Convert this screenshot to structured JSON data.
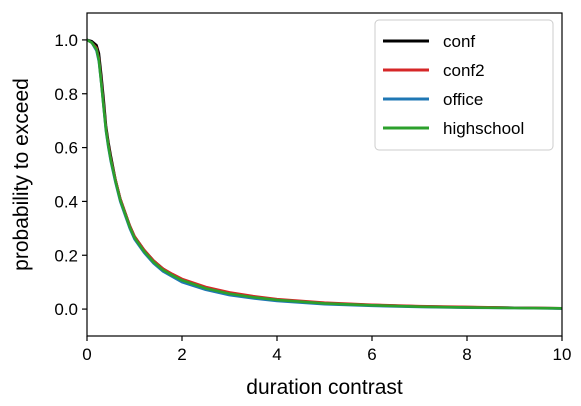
{
  "chart_data": {
    "type": "line",
    "title": "",
    "xlabel": "duration contrast",
    "ylabel": "probability to exceed",
    "xlim": [
      0,
      10
    ],
    "ylim": [
      -0.1,
      1.1
    ],
    "xticks": [
      0,
      2,
      4,
      6,
      8,
      10
    ],
    "yticks": [
      0.0,
      0.2,
      0.4,
      0.6,
      0.8,
      1.0
    ],
    "xtick_labels": [
      "0",
      "2",
      "4",
      "6",
      "8",
      "10"
    ],
    "ytick_labels": [
      "0.0",
      "0.2",
      "0.4",
      "0.6",
      "0.8",
      "1.0"
    ],
    "grid": false,
    "legend_position": "top-right",
    "series": [
      {
        "name": "conf",
        "color": "#000000",
        "x": [
          0,
          0.1,
          0.2,
          0.25,
          0.3,
          0.35,
          0.4,
          0.45,
          0.5,
          0.6,
          0.7,
          0.8,
          0.9,
          1.0,
          1.2,
          1.4,
          1.6,
          1.8,
          2.0,
          2.5,
          3.0,
          3.5,
          4.0,
          5.0,
          6.0,
          7.0,
          8.0,
          9.0,
          10.0
        ],
        "y": [
          1.0,
          0.995,
          0.98,
          0.95,
          0.87,
          0.78,
          0.68,
          0.62,
          0.57,
          0.48,
          0.41,
          0.36,
          0.31,
          0.27,
          0.22,
          0.18,
          0.15,
          0.128,
          0.11,
          0.08,
          0.058,
          0.045,
          0.035,
          0.022,
          0.015,
          0.01,
          0.007,
          0.005,
          0.003
        ]
      },
      {
        "name": "conf2",
        "color": "#d62728",
        "x": [
          0,
          0.1,
          0.2,
          0.25,
          0.3,
          0.35,
          0.4,
          0.45,
          0.5,
          0.6,
          0.7,
          0.8,
          0.9,
          1.0,
          1.2,
          1.4,
          1.6,
          1.8,
          2.0,
          2.5,
          3.0,
          3.5,
          4.0,
          5.0,
          6.0,
          7.0,
          8.0,
          9.0,
          10.0
        ],
        "y": [
          1.0,
          0.99,
          0.97,
          0.93,
          0.85,
          0.76,
          0.67,
          0.61,
          0.56,
          0.48,
          0.41,
          0.36,
          0.31,
          0.27,
          0.22,
          0.18,
          0.15,
          0.13,
          0.112,
          0.082,
          0.062,
          0.048,
          0.037,
          0.024,
          0.016,
          0.011,
          0.008,
          0.005,
          0.003
        ]
      },
      {
        "name": "office",
        "color": "#1f77b4",
        "x": [
          0,
          0.1,
          0.2,
          0.25,
          0.3,
          0.35,
          0.4,
          0.45,
          0.5,
          0.6,
          0.7,
          0.8,
          0.9,
          1.0,
          1.2,
          1.4,
          1.6,
          1.8,
          2.0,
          2.5,
          3.0,
          3.5,
          4.0,
          5.0,
          6.0,
          7.0,
          8.0,
          9.0,
          10.0
        ],
        "y": [
          1.0,
          0.99,
          0.96,
          0.92,
          0.84,
          0.75,
          0.66,
          0.6,
          0.55,
          0.47,
          0.4,
          0.35,
          0.3,
          0.26,
          0.21,
          0.17,
          0.14,
          0.12,
          0.1,
          0.072,
          0.052,
          0.04,
          0.03,
          0.018,
          0.012,
          0.008,
          0.005,
          0.004,
          0.002
        ]
      },
      {
        "name": "highschool",
        "color": "#2ca02c",
        "x": [
          0,
          0.1,
          0.2,
          0.25,
          0.3,
          0.35,
          0.4,
          0.45,
          0.5,
          0.6,
          0.7,
          0.8,
          0.9,
          1.0,
          1.2,
          1.4,
          1.6,
          1.8,
          2.0,
          2.5,
          3.0,
          3.5,
          4.0,
          5.0,
          6.0,
          7.0,
          8.0,
          9.0,
          10.0
        ],
        "y": [
          1.0,
          0.99,
          0.965,
          0.925,
          0.84,
          0.75,
          0.665,
          0.605,
          0.555,
          0.475,
          0.405,
          0.355,
          0.305,
          0.265,
          0.215,
          0.175,
          0.145,
          0.125,
          0.107,
          0.077,
          0.057,
          0.044,
          0.034,
          0.021,
          0.014,
          0.009,
          0.006,
          0.004,
          0.003
        ]
      }
    ]
  }
}
